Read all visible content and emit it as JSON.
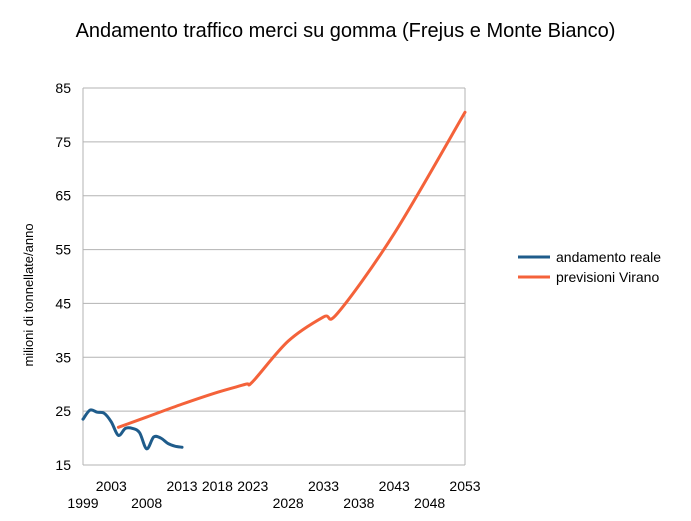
{
  "chart_data": {
    "type": "line",
    "title": "Andamento traffico merci su gomma (Frejus e Monte Bianco)",
    "xlabel": "",
    "ylabel": "milioni di tonnellate/anno",
    "xlim": [
      1999,
      2053
    ],
    "ylim": [
      15,
      85
    ],
    "y_ticks": [
      15,
      25,
      35,
      45,
      55,
      65,
      75,
      85
    ],
    "x_ticks_lower": [
      1999,
      2008,
      2028,
      2038,
      2048
    ],
    "x_ticks_upper": [
      2003,
      2013,
      2018,
      2023,
      2033,
      2043,
      2053
    ],
    "grid": "horizontal",
    "legend": "right",
    "series": [
      {
        "name": "andamento reale",
        "color": "#1f5c8b",
        "x": [
          1999,
          2000,
          2001,
          2002,
          2003,
          2004,
          2005,
          2006,
          2007,
          2008,
          2009,
          2010,
          2011,
          2012,
          2013
        ],
        "y": [
          23.5,
          25.2,
          24.8,
          24.6,
          23.0,
          20.5,
          21.8,
          21.8,
          21.0,
          18.0,
          20.2,
          20.0,
          19.0,
          18.5,
          18.3
        ]
      },
      {
        "name": "previsioni Virano",
        "color": "#f4623a",
        "x": [
          2004,
          2008,
          2013,
          2018,
          2022,
          2023,
          2028,
          2033,
          2035,
          2043,
          2053
        ],
        "y": [
          22.0,
          23.9,
          26.3,
          28.5,
          30.0,
          30.5,
          38.0,
          42.5,
          43.2,
          58.0,
          80.5
        ]
      }
    ]
  }
}
